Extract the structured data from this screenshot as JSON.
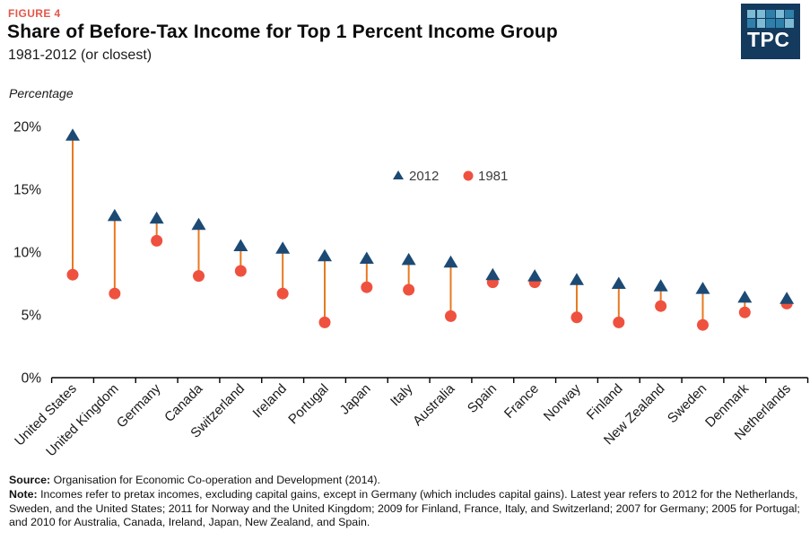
{
  "header": {
    "figure_label": "FIGURE 4",
    "title": "Share of Before-Tax Income for Top 1 Percent Income Group",
    "subtitle": "1981-2012 (or closest)"
  },
  "logo": {
    "text": "TPC",
    "background": "#143a5e",
    "square_colors": {
      "light": "#7cbbd3",
      "medium": "#2e80aa"
    },
    "squares": [
      [
        "light",
        "light",
        "medium",
        "light",
        "medium"
      ],
      [
        "medium",
        "light",
        "medium",
        "medium",
        "light"
      ]
    ]
  },
  "chart": {
    "unit_label": "Percentage"
  },
  "chart_data": {
    "type": "scatter",
    "subtype": "dumbbell",
    "title": "Share of Before-Tax Income for Top 1 Percent Income Group",
    "categories": [
      "United States",
      "United Kingdom",
      "Germany",
      "Canada",
      "Switzerland",
      "Ireland",
      "Portugal",
      "Japan",
      "Italy",
      "Australia",
      "Spain",
      "France",
      "Norway",
      "Finland",
      "New Zealand",
      "Sweden",
      "Denmark",
      "Netherlands"
    ],
    "series": [
      {
        "name": "2012",
        "marker": "triangle",
        "color": "#1c4a74",
        "values": [
          19.3,
          12.9,
          12.7,
          12.2,
          10.5,
          10.3,
          9.7,
          9.5,
          9.4,
          9.2,
          8.2,
          8.1,
          7.8,
          7.5,
          7.3,
          7.1,
          6.4,
          6.3
        ]
      },
      {
        "name": "1981",
        "marker": "circle",
        "color": "#ef513f",
        "values": [
          8.2,
          6.7,
          10.9,
          8.1,
          8.5,
          6.7,
          4.4,
          7.2,
          7.0,
          4.9,
          7.6,
          7.6,
          4.8,
          4.4,
          5.7,
          4.2,
          5.2,
          5.9
        ]
      }
    ],
    "connector_color": "#e8791f",
    "axis_color": "#000000",
    "xlabel": "",
    "ylabel": "Percentage",
    "ylim": [
      0,
      20
    ],
    "ytick_values": [
      0,
      5,
      10,
      15,
      20
    ],
    "ytick_labels": [
      "0%",
      "5%",
      "10%",
      "15%",
      "20%"
    ],
    "grid": false,
    "legend_position": "inside-top-center"
  },
  "footer": {
    "source_label": "Source:",
    "source_text": " Organisation for Economic Co-operation and Development (2014).",
    "note_label": "Note:",
    "note_text": " Incomes refer to pretax incomes, excluding capital gains, except in Germany (which includes capital gains). Latest year refers to 2012 for the Netherlands, Sweden, and the United States; 2011 for Norway and the United Kingdom; 2009 for Finland, France, Italy, and Switzerland; 2007 for Germany; 2005 for Portugal; and 2010 for Australia, Canada, Ireland, Japan, New Zealand, and Spain."
  }
}
